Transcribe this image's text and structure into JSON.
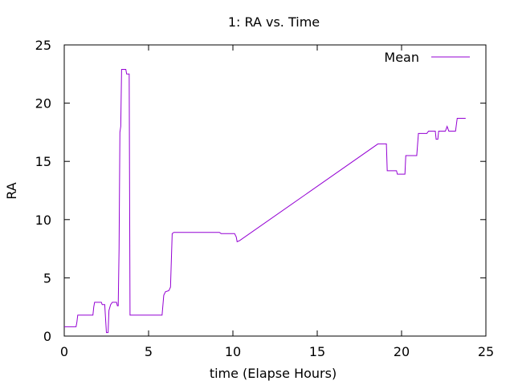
{
  "chart_data": {
    "type": "line",
    "title": "1: RA vs. Time",
    "xlabel": "time (Elapse Hours)",
    "ylabel": "RA",
    "xlim": [
      0,
      25
    ],
    "ylim": [
      0,
      25
    ],
    "xticks": [
      "0",
      "5",
      "10",
      "15",
      "20",
      "25"
    ],
    "yticks": [
      "0",
      "5",
      "10",
      "15",
      "20",
      "25"
    ],
    "grid": false,
    "legend_position": "top-right",
    "series": [
      {
        "name": "Mean",
        "color": "#9400d3",
        "points": [
          [
            0,
            0.8
          ],
          [
            0.7,
            0.8
          ],
          [
            0.75,
            1.2
          ],
          [
            0.8,
            1.8
          ],
          [
            1.7,
            1.8
          ],
          [
            1.75,
            2.5
          ],
          [
            1.8,
            2.9
          ],
          [
            2.2,
            2.9
          ],
          [
            2.25,
            2.7
          ],
          [
            2.4,
            2.7
          ],
          [
            2.45,
            1.5
          ],
          [
            2.5,
            0.3
          ],
          [
            2.6,
            0.3
          ],
          [
            2.65,
            2.2
          ],
          [
            2.75,
            2.7
          ],
          [
            2.85,
            2.9
          ],
          [
            3.1,
            2.9
          ],
          [
            3.15,
            2.6
          ],
          [
            3.2,
            2.6
          ],
          [
            3.25,
            7.5
          ],
          [
            3.3,
            17.5
          ],
          [
            3.35,
            18.0
          ],
          [
            3.4,
            22.9
          ],
          [
            3.65,
            22.9
          ],
          [
            3.7,
            22.5
          ],
          [
            3.85,
            22.5
          ],
          [
            3.9,
            1.8
          ],
          [
            5.8,
            1.8
          ],
          [
            5.9,
            3.5
          ],
          [
            6.0,
            3.8
          ],
          [
            6.2,
            3.9
          ],
          [
            6.3,
            4.2
          ],
          [
            6.4,
            8.8
          ],
          [
            6.5,
            8.9
          ],
          [
            7.0,
            8.9
          ],
          [
            7.5,
            8.9
          ],
          [
            8.0,
            8.9
          ],
          [
            8.5,
            8.9
          ],
          [
            9.2,
            8.9
          ],
          [
            9.3,
            8.8
          ],
          [
            10.1,
            8.8
          ],
          [
            10.2,
            8.5
          ],
          [
            10.25,
            8.1
          ],
          [
            10.4,
            8.2
          ],
          [
            18.6,
            16.5
          ],
          [
            19.1,
            16.5
          ],
          [
            19.15,
            14.2
          ],
          [
            19.7,
            14.2
          ],
          [
            19.75,
            13.9
          ],
          [
            20.2,
            13.9
          ],
          [
            20.25,
            15.5
          ],
          [
            20.9,
            15.5
          ],
          [
            21.0,
            17.4
          ],
          [
            21.5,
            17.4
          ],
          [
            21.6,
            17.6
          ],
          [
            22.0,
            17.6
          ],
          [
            22.05,
            16.9
          ],
          [
            22.15,
            16.9
          ],
          [
            22.2,
            17.6
          ],
          [
            22.6,
            17.6
          ],
          [
            22.7,
            18.0
          ],
          [
            22.8,
            17.6
          ],
          [
            23.2,
            17.6
          ],
          [
            23.3,
            18.7
          ],
          [
            23.8,
            18.7
          ]
        ]
      }
    ]
  }
}
